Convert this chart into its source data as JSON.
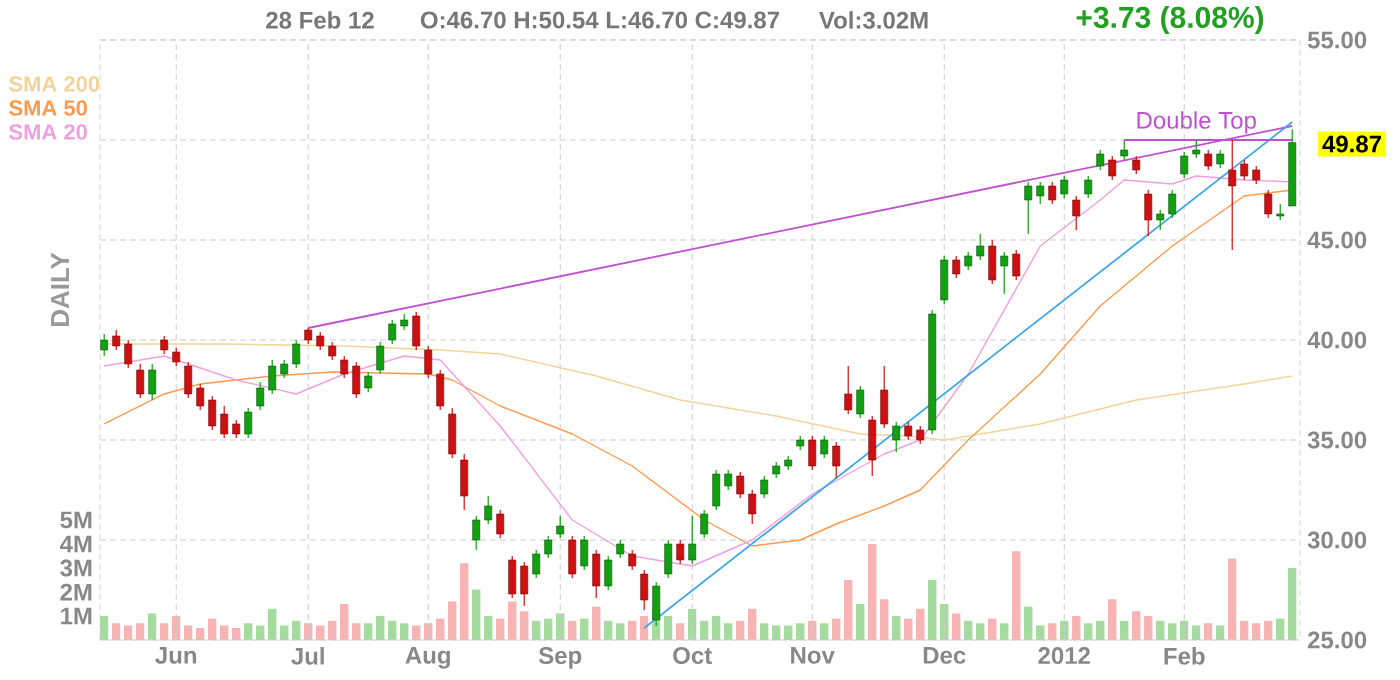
{
  "chart_data": {
    "type": "candlestick",
    "annotations": [
      "28 Feb 12",
      "O:46.70  H:50.54  L:46.70  C:49.87",
      "Vol:3.02M",
      "+3.73 (8.08%)",
      {
        "text": "Double Top",
        "y": 50.0
      },
      "49.87",
      "DAILY"
    ],
    "categories": [
      null,
      null,
      null,
      null,
      null,
      null,
      "Jun",
      null,
      null,
      null,
      null,
      null,
      null,
      null,
      null,
      null,
      null,
      "Jul",
      null,
      null,
      null,
      null,
      null,
      null,
      null,
      null,
      null,
      "Aug",
      null,
      null,
      null,
      null,
      null,
      null,
      null,
      null,
      null,
      null,
      "Sep",
      null,
      null,
      null,
      null,
      null,
      null,
      null,
      null,
      null,
      null,
      "Oct",
      null,
      null,
      null,
      null,
      null,
      null,
      null,
      null,
      null,
      "Nov",
      null,
      null,
      null,
      null,
      null,
      null,
      null,
      null,
      null,
      null,
      "Dec",
      null,
      null,
      null,
      null,
      null,
      null,
      null,
      null,
      null,
      "2012",
      null,
      null,
      null,
      null,
      null,
      null,
      null,
      null,
      null,
      "Feb",
      null,
      null,
      null,
      null,
      null,
      null,
      null,
      null,
      null
    ],
    "ylim": [
      25,
      55
    ],
    "yticks": [
      {
        "value": 25,
        "label": "25.00"
      },
      {
        "value": 30,
        "label": "30.00"
      },
      {
        "value": 35,
        "label": "35.00"
      },
      {
        "value": 40,
        "label": "40.00"
      },
      {
        "value": 45,
        "label": "45.00"
      },
      {
        "value": 50,
        "label": null
      },
      {
        "value": 55,
        "label": "55.00"
      }
    ],
    "y2lim": [
      0,
      25
    ],
    "y2ticks": [
      {
        "value": 1,
        "label": "1M"
      },
      {
        "value": 2,
        "label": "2M"
      },
      {
        "value": 3,
        "label": "3M"
      },
      {
        "value": 4,
        "label": "4M"
      },
      {
        "value": 5,
        "label": "5M"
      }
    ],
    "grid": true,
    "legend": "top left",
    "series": [
      {
        "type": "bar",
        "axis": "y2",
        "values": [
          1.0,
          0.7,
          0.6,
          0.7,
          1.1,
          0.7,
          1.0,
          0.6,
          0.5,
          0.9,
          0.6,
          0.5,
          0.7,
          0.6,
          1.3,
          0.6,
          0.8,
          0.7,
          0.6,
          0.8,
          1.5,
          0.7,
          0.7,
          1.0,
          0.8,
          0.7,
          0.6,
          0.7,
          0.9,
          1.6,
          3.2,
          2.1,
          1.0,
          0.9,
          1.6,
          1.2,
          0.8,
          0.9,
          1.1,
          0.8,
          0.9,
          1.4,
          0.8,
          0.7,
          0.8,
          1.0,
          1.3,
          1.0,
          0.7,
          1.3,
          0.8,
          1.0,
          0.7,
          0.8,
          1.3,
          0.7,
          0.6,
          0.6,
          0.7,
          0.8,
          0.7,
          0.9,
          2.5,
          1.5,
          4.0,
          1.7,
          1.0,
          0.9,
          1.3,
          2.5,
          1.5,
          1.1,
          0.8,
          0.7,
          0.9,
          0.7,
          3.7,
          1.4,
          0.6,
          0.7,
          0.8,
          1.0,
          0.7,
          0.8,
          1.7,
          0.8,
          1.2,
          1.0,
          0.8,
          0.7,
          0.8,
          0.6,
          0.7,
          0.6,
          3.4,
          0.8,
          0.7,
          0.8,
          0.9,
          3.0
        ],
        "colors": [
          "#a6dba0",
          "#f8b4b4",
          "#f8b4b4",
          "#f8b4b4",
          "#a6dba0",
          "#f8b4b4",
          "#f8b4b4",
          "#f8b4b4",
          "#f8b4b4",
          "#f8b4b4",
          "#f8b4b4",
          "#f8b4b4",
          "#a6dba0",
          "#a6dba0",
          "#a6dba0",
          "#a6dba0",
          "#a6dba0",
          "#f8b4b4",
          "#f8b4b4",
          "#f8b4b4",
          "#f8b4b4",
          "#f8b4b4",
          "#a6dba0",
          "#a6dba0",
          "#a6dba0",
          "#a6dba0",
          "#f8b4b4",
          "#f8b4b4",
          "#f8b4b4",
          "#f8b4b4",
          "#f8b4b4",
          "#a6dba0",
          "#a6dba0",
          "#f8b4b4",
          "#f8b4b4",
          "#f8b4b4",
          "#a6dba0",
          "#a6dba0",
          "#a6dba0",
          "#f8b4b4",
          "#a6dba0",
          "#f8b4b4",
          "#a6dba0",
          "#a6dba0",
          "#f8b4b4",
          "#f8b4b4",
          "#a6dba0",
          "#a6dba0",
          "#f8b4b4",
          "#a6dba0",
          "#a6dba0",
          "#a6dba0",
          "#a6dba0",
          "#f8b4b4",
          "#f8b4b4",
          "#a6dba0",
          "#a6dba0",
          "#a6dba0",
          "#a6dba0",
          "#f8b4b4",
          "#a6dba0",
          "#f8b4b4",
          "#f8b4b4",
          "#a6dba0",
          "#f8b4b4",
          "#f8b4b4",
          "#a6dba0",
          "#f8b4b4",
          "#f8b4b4",
          "#a6dba0",
          "#a6dba0",
          "#f8b4b4",
          "#a6dba0",
          "#a6dba0",
          "#f8b4b4",
          "#a6dba0",
          "#f8b4b4",
          "#a6dba0",
          "#a6dba0",
          "#f8b4b4",
          "#a6dba0",
          "#f8b4b4",
          "#a6dba0",
          "#a6dba0",
          "#f8b4b4",
          "#a6dba0",
          "#f8b4b4",
          "#f8b4b4",
          "#a6dba0",
          "#a6dba0",
          "#a6dba0",
          "#a6dba0",
          "#f8b4b4",
          "#a6dba0",
          "#f8b4b4",
          "#f8b4b4",
          "#f8b4b4",
          "#f8b4b4",
          "#a6dba0",
          "#a6dba0"
        ]
      },
      {
        "type": "line",
        "name": "SMA 200",
        "color": "#f2d49a",
        "values": [
          39.8,
          null,
          null,
          null,
          null,
          null,
          null,
          null,
          null,
          null,
          39.8,
          null,
          null,
          null,
          null,
          null,
          null,
          null,
          null,
          null,
          39.7,
          null,
          null,
          null,
          null,
          null,
          null,
          null,
          39.5,
          null,
          null,
          null,
          null,
          39.3,
          null,
          null,
          null,
          null,
          null,
          null,
          null,
          38.2,
          null,
          null,
          null,
          null,
          null,
          null,
          37.0,
          null,
          null,
          null,
          null,
          null,
          null,
          null,
          36.2,
          null,
          null,
          null,
          null,
          null,
          null,
          35.3,
          null,
          null,
          null,
          35.2,
          null,
          null,
          35.0,
          null,
          null,
          null,
          null,
          null,
          null,
          null,
          35.8,
          null,
          null,
          null,
          null,
          null,
          null,
          null,
          37.0,
          null,
          null,
          null,
          null,
          null,
          null,
          null,
          null,
          37.8,
          null,
          null,
          null,
          38.2
        ]
      },
      {
        "type": "line",
        "name": "SMA 50",
        "color": "#ff9a4d",
        "values": [
          35.8,
          null,
          null,
          null,
          null,
          37.3,
          null,
          null,
          37.8,
          null,
          null,
          null,
          null,
          null,
          38.2,
          null,
          null,
          null,
          null,
          38.4,
          null,
          null,
          null,
          null,
          null,
          null,
          null,
          38.3,
          null,
          38.0,
          null,
          null,
          null,
          36.7,
          null,
          null,
          null,
          null,
          null,
          35.3,
          null,
          null,
          null,
          null,
          33.7,
          null,
          null,
          null,
          null,
          null,
          31.0,
          null,
          null,
          null,
          29.7,
          null,
          null,
          null,
          30.0,
          null,
          null,
          30.8,
          null,
          null,
          null,
          31.7,
          null,
          null,
          32.5,
          null,
          null,
          null,
          35.0,
          null,
          null,
          null,
          null,
          null,
          38.3,
          null,
          null,
          null,
          null,
          41.7,
          null,
          null,
          null,
          null,
          null,
          44.7,
          null,
          null,
          null,
          null,
          null,
          47.2,
          null,
          null,
          null,
          47.5
        ]
      },
      {
        "type": "line",
        "name": "SMA 20",
        "color": "#f0a0e0",
        "values": [
          38.7,
          null,
          null,
          null,
          null,
          39.2,
          null,
          null,
          null,
          null,
          null,
          38.0,
          null,
          null,
          null,
          null,
          37.3,
          null,
          null,
          null,
          38.3,
          null,
          null,
          null,
          null,
          39.2,
          null,
          null,
          39.0,
          null,
          null,
          null,
          null,
          35.7,
          null,
          null,
          null,
          null,
          null,
          31.0,
          null,
          null,
          null,
          null,
          29.2,
          null,
          null,
          null,
          null,
          28.7,
          null,
          null,
          null,
          null,
          30.0,
          null,
          null,
          null,
          null,
          32.3,
          null,
          null,
          null,
          null,
          null,
          34.3,
          null,
          null,
          35.0,
          null,
          null,
          null,
          38.3,
          null,
          null,
          null,
          null,
          null,
          44.7,
          null,
          null,
          null,
          null,
          47.0,
          null,
          48.0,
          null,
          null,
          null,
          47.8,
          null,
          48.2,
          null,
          null,
          null,
          48.0,
          null,
          null,
          null,
          47.9
        ]
      },
      {
        "type": "line",
        "color": "#c050d0",
        "values": [
          null,
          null,
          null,
          null,
          null,
          null,
          null,
          null,
          null,
          null,
          null,
          null,
          null,
          null,
          null,
          null,
          null,
          40.6,
          null,
          null,
          null,
          null,
          null,
          null,
          null,
          null,
          null,
          null,
          null,
          null,
          null,
          null,
          null,
          null,
          null,
          null,
          null,
          null,
          null,
          null,
          null,
          null,
          null,
          null,
          null,
          null,
          null,
          null,
          null,
          null,
          null,
          null,
          null,
          null,
          null,
          null,
          null,
          null,
          null,
          null,
          null,
          null,
          null,
          null,
          null,
          null,
          null,
          null,
          null,
          null,
          null,
          null,
          null,
          null,
          null,
          null,
          null,
          null,
          null,
          null,
          null,
          null,
          null,
          null,
          null,
          null,
          null,
          null,
          null,
          null,
          null,
          null,
          null,
          null,
          null,
          null,
          null,
          null,
          null,
          50.7
        ]
      },
      {
        "type": "line",
        "color": "#40a8e8",
        "values": [
          null,
          null,
          null,
          null,
          null,
          null,
          null,
          null,
          null,
          null,
          null,
          null,
          null,
          null,
          null,
          null,
          null,
          null,
          null,
          null,
          null,
          null,
          null,
          null,
          null,
          null,
          null,
          null,
          null,
          null,
          null,
          null,
          null,
          null,
          null,
          null,
          null,
          null,
          null,
          null,
          null,
          null,
          null,
          null,
          null,
          25.6,
          null,
          null,
          null,
          null,
          null,
          null,
          null,
          null,
          null,
          null,
          null,
          null,
          null,
          null,
          null,
          null,
          null,
          null,
          null,
          null,
          null,
          null,
          null,
          null,
          null,
          null,
          null,
          null,
          null,
          null,
          null,
          null,
          null,
          null,
          null,
          null,
          null,
          null,
          null,
          null,
          null,
          null,
          null,
          null,
          null,
          null,
          null,
          null,
          null,
          null,
          null,
          null,
          null,
          50.9
        ]
      },
      {
        "type": "line",
        "color": "#c050d0",
        "values": [
          null,
          null,
          null,
          null,
          null,
          null,
          null,
          null,
          null,
          null,
          null,
          null,
          null,
          null,
          null,
          null,
          null,
          null,
          null,
          null,
          null,
          null,
          null,
          null,
          null,
          null,
          null,
          null,
          null,
          null,
          null,
          null,
          null,
          null,
          null,
          null,
          null,
          null,
          null,
          null,
          null,
          null,
          null,
          null,
          null,
          null,
          null,
          null,
          null,
          null,
          null,
          null,
          null,
          null,
          null,
          null,
          null,
          null,
          null,
          null,
          null,
          null,
          null,
          null,
          null,
          null,
          null,
          null,
          null,
          null,
          null,
          null,
          null,
          null,
          null,
          null,
          null,
          null,
          null,
          null,
          null,
          null,
          null,
          null,
          null,
          50.0,
          null,
          null,
          null,
          null,
          null,
          null,
          null,
          null,
          null,
          null,
          null,
          null,
          null,
          50.0
        ]
      }
    ],
    "ohlc": [
      [
        39.5,
        40.3,
        39.2,
        40.0
      ],
      [
        40.2,
        40.5,
        39.5,
        39.7
      ],
      [
        39.8,
        40.0,
        38.6,
        38.8
      ],
      [
        38.5,
        38.8,
        37.1,
        37.3
      ],
      [
        37.3,
        38.8,
        37.0,
        38.5
      ],
      [
        40.0,
        40.2,
        39.3,
        39.5
      ],
      [
        39.4,
        39.6,
        38.7,
        38.9
      ],
      [
        38.7,
        38.9,
        37.1,
        37.3
      ],
      [
        37.6,
        37.8,
        36.5,
        36.7
      ],
      [
        37.0,
        37.2,
        35.5,
        35.7
      ],
      [
        36.3,
        36.7,
        35.1,
        35.3
      ],
      [
        35.8,
        36.0,
        35.1,
        35.3
      ],
      [
        35.3,
        36.6,
        35.1,
        36.4
      ],
      [
        36.7,
        37.9,
        36.5,
        37.6
      ],
      [
        37.5,
        39.0,
        37.3,
        38.7
      ],
      [
        38.3,
        39.0,
        38.1,
        38.8
      ],
      [
        38.8,
        40.0,
        38.6,
        39.8
      ],
      [
        40.5,
        40.6,
        39.8,
        40.0
      ],
      [
        40.2,
        40.4,
        39.5,
        39.7
      ],
      [
        39.7,
        39.9,
        39.0,
        39.2
      ],
      [
        39.0,
        39.2,
        38.1,
        38.3
      ],
      [
        38.7,
        38.9,
        37.1,
        37.3
      ],
      [
        37.6,
        38.4,
        37.4,
        38.2
      ],
      [
        38.5,
        39.9,
        38.3,
        39.7
      ],
      [
        40.0,
        41.0,
        39.8,
        40.8
      ],
      [
        40.7,
        41.3,
        40.5,
        41.0
      ],
      [
        41.2,
        41.4,
        39.5,
        39.7
      ],
      [
        39.5,
        39.7,
        38.1,
        38.3
      ],
      [
        38.3,
        38.5,
        36.5,
        36.7
      ],
      [
        36.3,
        36.6,
        34.1,
        34.3
      ],
      [
        34.0,
        34.3,
        31.5,
        32.2
      ],
      [
        30.0,
        31.2,
        29.5,
        31.0
      ],
      [
        31.0,
        32.2,
        30.8,
        31.7
      ],
      [
        31.3,
        31.5,
        30.1,
        30.3
      ],
      [
        29.0,
        29.2,
        27.1,
        27.3
      ],
      [
        28.7,
        28.9,
        26.7,
        27.3
      ],
      [
        28.3,
        29.5,
        28.1,
        29.3
      ],
      [
        29.3,
        30.2,
        29.1,
        30.0
      ],
      [
        30.3,
        31.2,
        30.1,
        30.7
      ],
      [
        30.0,
        30.2,
        28.1,
        28.3
      ],
      [
        28.7,
        30.2,
        28.5,
        30.0
      ],
      [
        29.3,
        29.5,
        27.1,
        27.7
      ],
      [
        27.7,
        29.2,
        27.5,
        29.0
      ],
      [
        29.3,
        30.0,
        29.1,
        29.8
      ],
      [
        29.3,
        29.5,
        28.5,
        28.7
      ],
      [
        28.3,
        28.5,
        26.5,
        27.0
      ],
      [
        26.0,
        27.9,
        25.7,
        27.7
      ],
      [
        28.3,
        30.0,
        28.1,
        29.8
      ],
      [
        29.8,
        30.0,
        28.8,
        29.0
      ],
      [
        29.0,
        31.2,
        28.8,
        29.8
      ],
      [
        30.3,
        31.5,
        30.1,
        31.3
      ],
      [
        31.7,
        33.5,
        31.5,
        33.3
      ],
      [
        32.7,
        33.5,
        32.5,
        33.3
      ],
      [
        33.2,
        33.4,
        32.1,
        32.3
      ],
      [
        32.3,
        32.5,
        30.8,
        31.3
      ],
      [
        32.3,
        33.2,
        32.1,
        33.0
      ],
      [
        33.3,
        33.9,
        33.1,
        33.7
      ],
      [
        33.7,
        34.2,
        33.5,
        34.0
      ],
      [
        34.7,
        35.2,
        34.5,
        35.0
      ],
      [
        35.0,
        35.2,
        33.5,
        33.7
      ],
      [
        34.3,
        35.2,
        34.1,
        35.0
      ],
      [
        34.7,
        34.9,
        33.1,
        33.7
      ],
      [
        37.3,
        38.7,
        36.3,
        36.5
      ],
      [
        36.3,
        37.7,
        36.1,
        37.5
      ],
      [
        36.0,
        36.2,
        33.2,
        34.0
      ],
      [
        37.5,
        38.7,
        35.6,
        35.8
      ],
      [
        35.0,
        35.9,
        34.4,
        35.7
      ],
      [
        35.7,
        35.9,
        35.0,
        35.2
      ],
      [
        35.5,
        35.7,
        34.8,
        35.0
      ],
      [
        35.5,
        41.5,
        35.3,
        41.3
      ],
      [
        42.0,
        44.2,
        41.8,
        44.0
      ],
      [
        44.0,
        44.2,
        43.1,
        43.3
      ],
      [
        43.7,
        44.4,
        43.5,
        44.2
      ],
      [
        44.2,
        45.3,
        44.0,
        44.7
      ],
      [
        44.7,
        45.0,
        42.8,
        43.0
      ],
      [
        43.7,
        44.4,
        42.3,
        44.2
      ],
      [
        44.3,
        44.5,
        43.0,
        43.2
      ],
      [
        47.0,
        47.9,
        45.3,
        47.7
      ],
      [
        47.2,
        47.9,
        46.8,
        47.7
      ],
      [
        47.7,
        47.9,
        46.8,
        47.0
      ],
      [
        47.3,
        48.2,
        47.1,
        48.0
      ],
      [
        47.0,
        47.2,
        45.5,
        46.2
      ],
      [
        47.3,
        48.2,
        47.1,
        48.0
      ],
      [
        48.7,
        49.5,
        48.5,
        49.3
      ],
      [
        49.0,
        49.2,
        48.0,
        48.2
      ],
      [
        49.2,
        50.0,
        49.0,
        49.5
      ],
      [
        49.0,
        49.2,
        48.3,
        48.5
      ],
      [
        47.3,
        47.5,
        45.2,
        46.0
      ],
      [
        46.0,
        46.5,
        45.5,
        46.3
      ],
      [
        46.3,
        47.5,
        46.1,
        47.3
      ],
      [
        48.3,
        49.4,
        48.1,
        49.2
      ],
      [
        49.3,
        50.0,
        49.1,
        49.5
      ],
      [
        49.3,
        49.5,
        48.5,
        48.7
      ],
      [
        48.8,
        49.5,
        48.6,
        49.3
      ],
      [
        48.5,
        50.0,
        44.5,
        47.7
      ],
      [
        48.8,
        49.0,
        48.0,
        48.2
      ],
      [
        48.5,
        48.7,
        47.8,
        48.0
      ],
      [
        47.3,
        47.5,
        46.1,
        46.3
      ],
      [
        46.2,
        46.8,
        46.0,
        46.3
      ],
      [
        46.7,
        50.54,
        46.7,
        49.87
      ]
    ],
    "colors": [
      "#10a010",
      "#d01010",
      "#d01010",
      "#d01010",
      "#10a010",
      "#d01010",
      "#d01010",
      "#d01010",
      "#d01010",
      "#d01010",
      "#d01010",
      "#d01010",
      "#10a010",
      "#10a010",
      "#10a010",
      "#10a010",
      "#10a010",
      "#d01010",
      "#d01010",
      "#d01010",
      "#d01010",
      "#d01010",
      "#10a010",
      "#10a010",
      "#10a010",
      "#10a010",
      "#d01010",
      "#d01010",
      "#d01010",
      "#d01010",
      "#d01010",
      "#10a010",
      "#10a010",
      "#d01010",
      "#d01010",
      "#d01010",
      "#10a010",
      "#10a010",
      "#10a010",
      "#d01010",
      "#10a010",
      "#d01010",
      "#10a010",
      "#10a010",
      "#d01010",
      "#d01010",
      "#10a010",
      "#10a010",
      "#d01010",
      "#10a010",
      "#10a010",
      "#10a010",
      "#10a010",
      "#d01010",
      "#d01010",
      "#10a010",
      "#10a010",
      "#10a010",
      "#10a010",
      "#d01010",
      "#10a010",
      "#d01010",
      "#d01010",
      "#10a010",
      "#d01010",
      "#d01010",
      "#10a010",
      "#d01010",
      "#d01010",
      "#10a010",
      "#10a010",
      "#d01010",
      "#10a010",
      "#10a010",
      "#d01010",
      "#10a010",
      "#d01010",
      "#10a010",
      "#10a010",
      "#d01010",
      "#10a010",
      "#d01010",
      "#10a010",
      "#10a010",
      "#d01010",
      "#10a010",
      "#d01010",
      "#d01010",
      "#10a010",
      "#10a010",
      "#10a010",
      "#10a010",
      "#d01010",
      "#10a010",
      "#d01010",
      "#d01010",
      "#d01010",
      "#d01010",
      "#10a010",
      "#10a010"
    ]
  }
}
